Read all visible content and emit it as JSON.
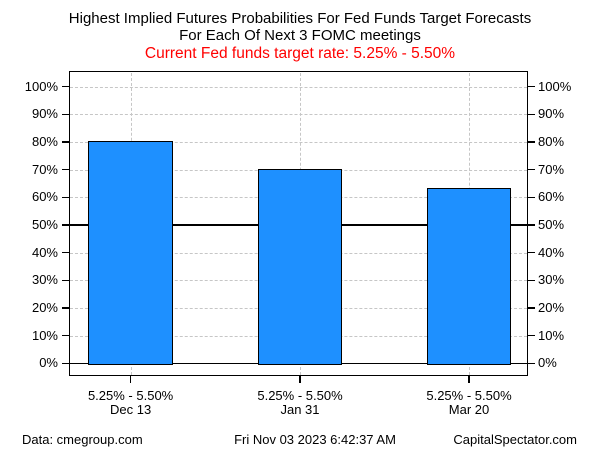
{
  "title": {
    "line1": "Highest Implied Futures Probabilities For Fed Funds Target Forecasts",
    "line2": "For Each Of Next 3 FOMC meetings"
  },
  "subtitle": {
    "text": "Current Fed funds target rate: 5.25% - 5.50%",
    "color": "#ff0000"
  },
  "chart_data": {
    "type": "bar",
    "title": "Highest Implied Futures Probabilities For Fed Funds Target Forecasts For Each Of Next 3 FOMC meetings",
    "subtitle": "Current Fed funds target rate: 5.25% - 5.50%",
    "categories": [
      {
        "target_range": "5.25% - 5.50%",
        "meeting_date": "Dec 13"
      },
      {
        "target_range": "5.25% - 5.50%",
        "meeting_date": "Jan 31"
      },
      {
        "target_range": "5.25% - 5.50%",
        "meeting_date": "Mar 20"
      }
    ],
    "values": [
      80.4,
      70.3,
      63.5
    ],
    "unit": "%",
    "ylim": [
      0,
      100
    ],
    "y_tick_step": 10,
    "y_tick_labels": [
      "0%",
      "10%",
      "20%",
      "30%",
      "40%",
      "50%",
      "60%",
      "70%",
      "80%",
      "90%",
      "100%"
    ],
    "y_axis_sides": [
      "left",
      "right"
    ],
    "grid": true,
    "solid_reference_lines": [
      0,
      50
    ],
    "bar_color": "#1e90ff",
    "bar_border_color": "#000000",
    "gridline_color": "#c6c6c6",
    "legend": "none"
  },
  "footer": {
    "left": "Data: cmegroup.com",
    "center": "Fri Nov 03 2023 6:42:37 AM",
    "right": "CapitalSpectator.com"
  }
}
